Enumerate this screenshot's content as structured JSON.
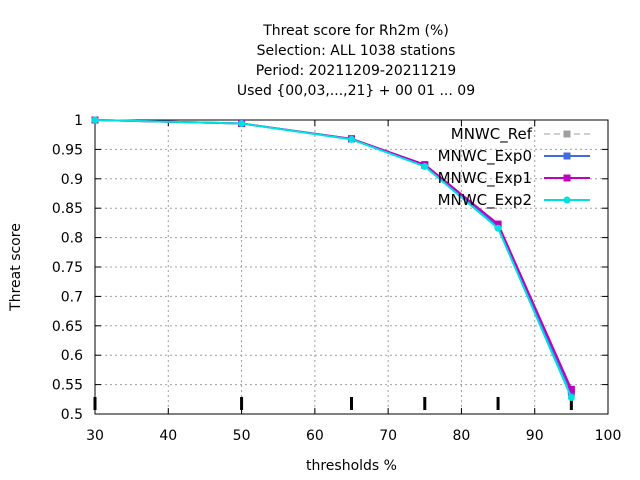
{
  "chart_data": {
    "type": "line",
    "title_lines": [
      "Threat score  for Rh2m (%)",
      "Selection: ALL    1038 stations",
      "Period: 20211209-20211219",
      "Used {00,03,...,21} + 00 01 ... 09"
    ],
    "xlabel": "thresholds %",
    "ylabel": "Threat score",
    "xlim": [
      30,
      100
    ],
    "ylim": [
      0.5,
      1.0
    ],
    "xticks": [
      30,
      40,
      50,
      60,
      70,
      80,
      90,
      100
    ],
    "yticks": [
      0.5,
      0.55,
      0.6,
      0.65,
      0.7,
      0.75,
      0.8,
      0.85,
      0.9,
      0.95,
      1.0
    ],
    "ytick_labels": [
      "0.5",
      "0.55",
      "0.6",
      "0.65",
      "0.7",
      "0.75",
      "0.8",
      "0.85",
      "0.9",
      "0.95",
      "1"
    ],
    "grid": true,
    "legend_position": "top-right",
    "threshold_markers": [
      30,
      50,
      65,
      75,
      85,
      95
    ],
    "x": [
      30,
      50,
      65,
      75,
      85,
      95
    ],
    "series": [
      {
        "name": "MNWC_Ref",
        "color": "#a0a0a0",
        "dashed": true,
        "marker": "square",
        "values": [
          1.0,
          0.994,
          0.968,
          0.924,
          0.821,
          0.538
        ]
      },
      {
        "name": "MNWC_Exp0",
        "color": "#4169e1",
        "dashed": false,
        "marker": "square",
        "values": [
          1.0,
          0.994,
          0.968,
          0.923,
          0.82,
          0.537
        ]
      },
      {
        "name": "MNWC_Exp1",
        "color": "#c000c0",
        "dashed": false,
        "marker": "square",
        "values": [
          1.0,
          0.994,
          0.968,
          0.924,
          0.823,
          0.542
        ]
      },
      {
        "name": "MNWC_Exp2",
        "color": "#00e0e0",
        "dashed": false,
        "marker": "circle",
        "values": [
          1.0,
          0.994,
          0.967,
          0.921,
          0.816,
          0.528
        ]
      }
    ]
  }
}
